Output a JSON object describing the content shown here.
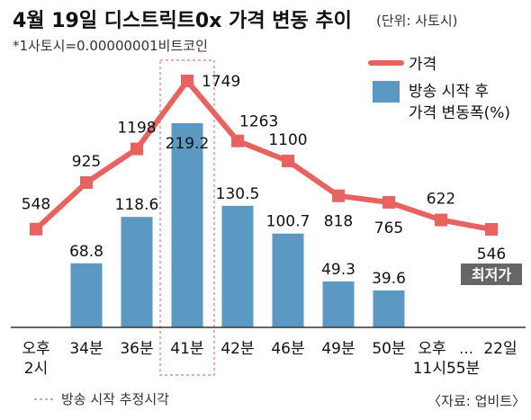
{
  "chart_data": {
    "type": "bar+line",
    "title": "4월 19일 디스트릭트0x 가격 변동 추이",
    "unit_note": "(단위: 사토시)",
    "subnote": "*1사토시=0.00000001비트코인",
    "categories": [
      "오후\n2시",
      "34분",
      "36분",
      "41분",
      "42분",
      "46분",
      "49분",
      "50분",
      "오후\n11시55분",
      "22일"
    ],
    "series": [
      {
        "name": "가격",
        "type": "line",
        "color": "#e8625f",
        "values": [
          548,
          925,
          1198,
          1749,
          1263,
          1100,
          818,
          765,
          622,
          546
        ]
      },
      {
        "name": "방송 시작 후\n가격 변동폭(%)",
        "type": "bar",
        "color": "#5b99c2",
        "values": [
          null,
          68.8,
          118.6,
          219.2,
          130.5,
          100.7,
          49.3,
          39.6,
          null,
          null
        ]
      }
    ],
    "min_label": "최저가",
    "highlight_category_index": 3,
    "highlight_note": "방송 시작 추정시각",
    "ellipsis": "…",
    "source": "〈자료: 업비트〉"
  }
}
